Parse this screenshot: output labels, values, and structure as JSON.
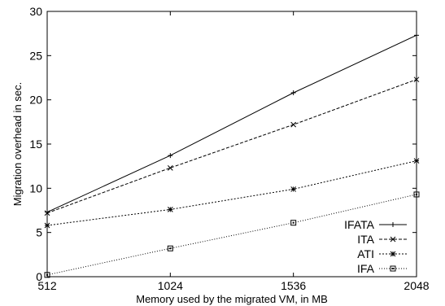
{
  "chart_data": {
    "type": "line",
    "title": "",
    "xlabel": "Memory used by the migrated VM, in MB",
    "ylabel": "Migration overhead in sec.",
    "x": [
      512,
      1024,
      1536,
      2048
    ],
    "x_ticks": [
      512,
      1024,
      1536,
      2048
    ],
    "y_ticks": [
      0,
      5,
      10,
      15,
      20,
      25,
      30
    ],
    "xlim": [
      512,
      2048
    ],
    "ylim": [
      0,
      30
    ],
    "grid": false,
    "legend_position": "bottom-right",
    "series": [
      {
        "name": "IFATA",
        "marker": "plus",
        "dash": "solid",
        "values": [
          7.3,
          13.7,
          20.8,
          27.3
        ]
      },
      {
        "name": "ITA",
        "marker": "cross",
        "dash": "dashed",
        "values": [
          7.2,
          12.3,
          17.2,
          22.3
        ]
      },
      {
        "name": "ATI",
        "marker": "star",
        "dash": "dotted",
        "values": [
          5.8,
          7.6,
          9.9,
          13.1
        ]
      },
      {
        "name": "IFA",
        "marker": "square",
        "dash": "fine-dotted",
        "values": [
          0.2,
          3.2,
          6.1,
          9.3
        ]
      }
    ]
  }
}
